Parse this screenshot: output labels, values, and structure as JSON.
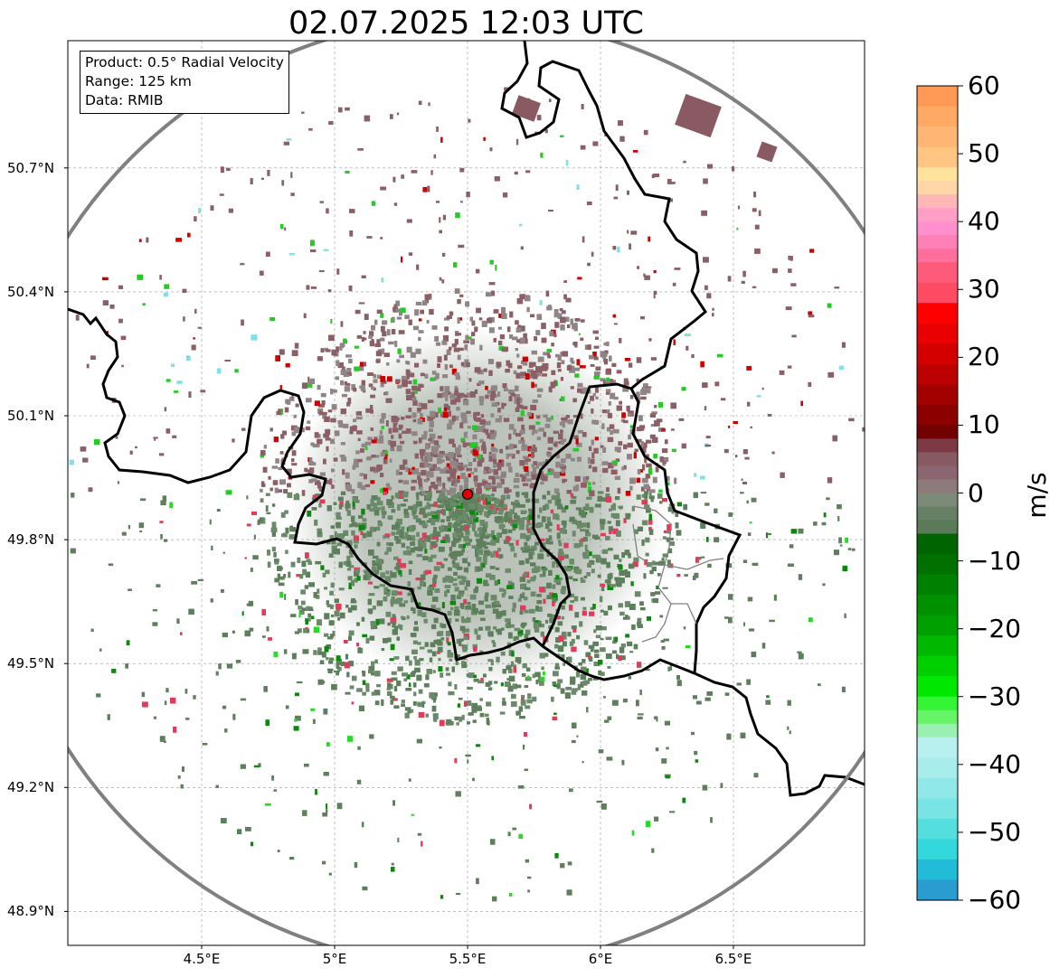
{
  "title": "02.07.2025 12:03 UTC",
  "info_box": {
    "product": "Product: 0.5° Radial Velocity",
    "range": "Range: 125 km",
    "source": "Data: RMIB"
  },
  "map": {
    "lat_labels": [
      "50.7°N",
      "50.4°N",
      "50.1°N",
      "49.8°N",
      "49.5°N",
      "49.2°N",
      "48.9°N"
    ],
    "lat_values": [
      50.7,
      50.4,
      50.1,
      49.8,
      49.5,
      49.2,
      48.9
    ],
    "lon_labels": [
      "4.5°E",
      "5°E",
      "5.5°E",
      "6°E",
      "6.5°E"
    ],
    "lon_values": [
      4.5,
      5.0,
      5.5,
      6.0,
      6.5
    ],
    "extent": {
      "lon_min": 4.0,
      "lon_max": 7.0,
      "lat_min": 48.8,
      "lat_max": 51.0
    },
    "radar_site": {
      "lon": 5.5,
      "lat": 49.91
    },
    "range_ring_color": "#808080",
    "border_color": "#000000",
    "gridlines": true
  },
  "colorbar": {
    "unit": "m/s",
    "vmin": -60,
    "vmax": 60,
    "tick_labels": [
      "60",
      "50",
      "40",
      "30",
      "20",
      "10",
      "0",
      "−10",
      "−20",
      "−30",
      "−40",
      "−50",
      "−60"
    ],
    "tick_values": [
      60,
      50,
      40,
      30,
      20,
      10,
      0,
      -10,
      -20,
      -30,
      -40,
      -50,
      -60
    ]
  }
}
